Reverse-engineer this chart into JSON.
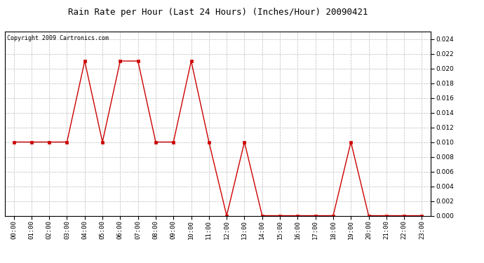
{
  "title": "Rain Rate per Hour (Last 24 Hours) (Inches/Hour) 20090421",
  "copyright": "Copyright 2009 Cartronics.com",
  "hours": [
    0,
    1,
    2,
    3,
    4,
    5,
    6,
    7,
    8,
    9,
    10,
    11,
    12,
    13,
    14,
    15,
    16,
    17,
    18,
    19,
    20,
    21,
    22,
    23
  ],
  "hour_labels": [
    "00:00",
    "01:00",
    "02:00",
    "03:00",
    "04:00",
    "05:00",
    "06:00",
    "07:00",
    "08:00",
    "09:00",
    "10:00",
    "11:00",
    "12:00",
    "13:00",
    "14:00",
    "15:00",
    "16:00",
    "17:00",
    "18:00",
    "19:00",
    "20:00",
    "21:00",
    "22:00",
    "23:00"
  ],
  "values": [
    0.01,
    0.01,
    0.01,
    0.01,
    0.021,
    0.01,
    0.021,
    0.021,
    0.01,
    0.01,
    0.021,
    0.01,
    0.0,
    0.01,
    0.0,
    0.0,
    0.0,
    0.0,
    0.0,
    0.01,
    0.0,
    0.0,
    0.0,
    0.0
  ],
  "line_color": "#cc0000",
  "marker_color": "#cc0000",
  "bg_color": "#ffffff",
  "grid_color": "#bbbbbb",
  "ylim": [
    0,
    0.025
  ],
  "yticks": [
    0.0,
    0.002,
    0.004,
    0.006,
    0.008,
    0.01,
    0.012,
    0.014,
    0.016,
    0.018,
    0.02,
    0.022,
    0.024
  ],
  "title_fontsize": 9,
  "copyright_fontsize": 6,
  "tick_fontsize": 6.5
}
